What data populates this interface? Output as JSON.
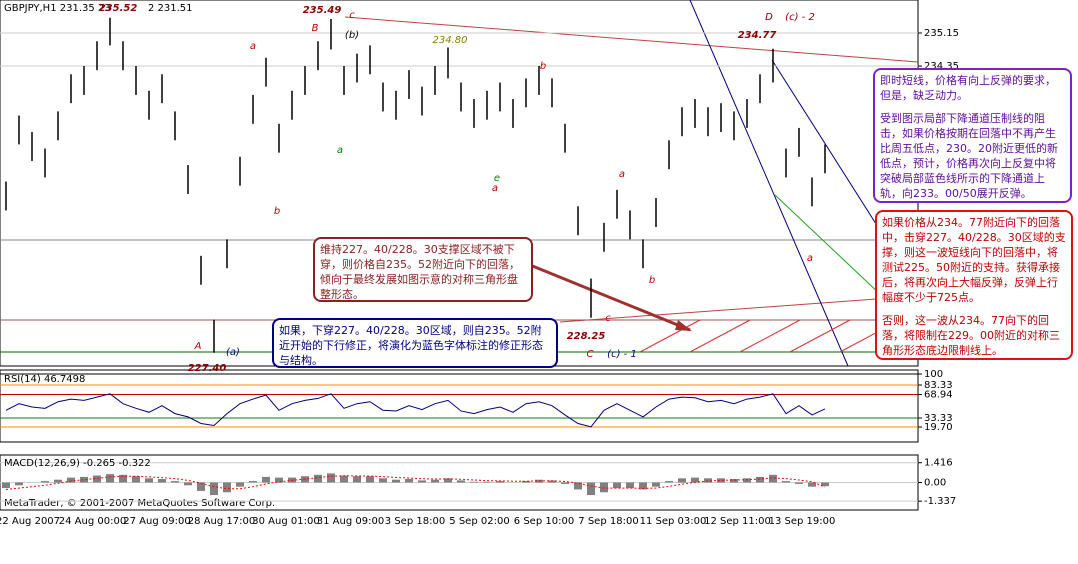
{
  "header": "GBPJPY,H1  231.35 23",
  "header_tail": "2 231.51",
  "footer": "MetaTrader, © 2001-2007 MetaQuotes Software Corp.",
  "notes": {
    "purple": [
      "即时短线，价格有向上反弹的要求，但是，缺乏动力。",
      "受到图示局部下降通道压制线的阻击，如果价格按期在回落中不再产生比周五低点，230。20附近更低的新低点，预计，价格再次向上反复中将突破局部蓝色线所示的下降通道上轨，向233。00/50展开反弹。"
    ],
    "red": [
      "如果价格从234。77附近向下的回落中，击穿227。40/228。30区域的支撑，则这一波短线向下的回落中，将测试225。50附近的支持。获得承接后，将再次向上大幅反弹，反弹上行幅度不少于725点。",
      "否则，这一波从234。77向下的回落，将限制在229。00附近的对称三角形形态底边限制线上。"
    ],
    "brown": "维持227。40/228。30支撑区域不被下穿，则价格自235。52附近向下的回落，倾向于最终发展如图示意的对称三角形盘整形态。",
    "blue": "如果，下穿227。40/228。30区域，则自235。52附近开始的下行修正，将演化为蓝色字体标注的修正形态与结构。"
  },
  "chart_data": [
    {
      "type": "hilo",
      "color": "#000000",
      "high": [
        231.55,
        233.15,
        232.75,
        232.35,
        233.25,
        234.15,
        234.35,
        234.95,
        235.52,
        234.95,
        234.35,
        233.75,
        234.15,
        233.25,
        231.95,
        229.75,
        228.2,
        230.15,
        232.15,
        233.65,
        234.55,
        232.95,
        233.75,
        234.35,
        234.95,
        235.49,
        234.35,
        234.65,
        234.85,
        233.95,
        233.75,
        234.25,
        233.85,
        234.35,
        234.8,
        233.95,
        233.55,
        233.75,
        233.95,
        233.55,
        234.05,
        234.35,
        234.05,
        232.95,
        230.95,
        229.2,
        230.55,
        231.35,
        230.85,
        230.15,
        231.15,
        232.55,
        233.35,
        233.55,
        233.35,
        233.45,
        233.25,
        233.55,
        234.15,
        234.77,
        232.35,
        232.85,
        231.65,
        232.45
      ],
      "low": [
        230.85,
        232.45,
        232.05,
        231.65,
        232.55,
        233.45,
        233.65,
        234.25,
        234.85,
        234.25,
        233.65,
        233.05,
        233.45,
        232.55,
        231.25,
        229.05,
        227.4,
        229.45,
        231.45,
        232.95,
        233.85,
        232.25,
        233.05,
        233.65,
        234.25,
        234.75,
        233.65,
        233.95,
        234.15,
        233.25,
        233.05,
        233.55,
        233.15,
        233.65,
        234.05,
        233.25,
        232.85,
        233.05,
        233.25,
        232.85,
        233.35,
        233.65,
        233.35,
        232.25,
        230.25,
        228.25,
        229.85,
        230.65,
        230.15,
        229.45,
        230.45,
        231.85,
        232.65,
        232.85,
        232.65,
        232.75,
        232.55,
        232.85,
        233.45,
        233.95,
        231.65,
        232.15,
        230.95,
        231.75
      ],
      "ylim": [
        227.08,
        235.95
      ],
      "yticks": [
        235.15,
        234.35
      ],
      "x_labels": [
        "22 Aug 2007",
        "24 Aug 00:00",
        "27 Aug 09:00",
        "28 Aug 17:00",
        "30 Aug 01:00",
        "31 Aug 09:00",
        "3 Sep 18:00",
        "5 Sep 02:00",
        "6 Sep 10:00",
        "7 Sep 18:00",
        "11 Sep 03:00",
        "12 Sep 11:00",
        "13 Sep 19:00"
      ],
      "wave_labels": [
        "235.52",
        "235.49",
        "c",
        "B",
        "(b)",
        "a",
        "234.80",
        "b",
        "a",
        "e",
        "a",
        "a",
        "b",
        "b",
        "a",
        "D",
        "(c) - 2",
        "234.77",
        "A",
        "(a)",
        "227.40",
        "228.25",
        "c",
        "C",
        "(c) - 1"
      ]
    },
    {
      "type": "line",
      "title": "RSI(14) 46.7498",
      "color": "#000080",
      "values": [
        45,
        55,
        50,
        48,
        58,
        62,
        60,
        65,
        70,
        55,
        48,
        42,
        52,
        40,
        35,
        25,
        22,
        40,
        55,
        62,
        68,
        45,
        55,
        60,
        63,
        70,
        48,
        55,
        58,
        45,
        44,
        52,
        46,
        55,
        60,
        44,
        40,
        46,
        50,
        42,
        55,
        58,
        52,
        38,
        25,
        20,
        45,
        55,
        45,
        35,
        50,
        62,
        65,
        64,
        58,
        60,
        55,
        62,
        65,
        70,
        40,
        52,
        38,
        47
      ],
      "ylim": [
        0,
        100
      ],
      "yticks": [
        100,
        83.33,
        68.94,
        33.33,
        {
          "value": 19.7,
          "label": "19.70"
        }
      ]
    },
    {
      "type": "macd",
      "title": "MACD(12,26,9) -0.265 -0.322",
      "color": "#808080",
      "signal_color": "#ff0000",
      "values": [
        -0.4,
        -0.2,
        0,
        0.1,
        0.2,
        0.35,
        0.4,
        0.5,
        0.6,
        0.55,
        0.45,
        0.3,
        0.25,
        0.1,
        -0.2,
        -0.6,
        -0.9,
        -0.7,
        -0.3,
        0.1,
        0.4,
        0.35,
        0.35,
        0.45,
        0.55,
        0.65,
        0.5,
        0.45,
        0.45,
        0.3,
        0.2,
        0.25,
        0.15,
        0.2,
        0.3,
        0.15,
        0.05,
        0.05,
        0.1,
        0,
        0.1,
        0.2,
        0.15,
        -0.1,
        -0.5,
        -0.9,
        -0.7,
        -0.4,
        -0.4,
        -0.5,
        -0.3,
        0.1,
        0.3,
        0.35,
        0.3,
        0.3,
        0.25,
        0.3,
        0.4,
        0.55,
        0.1,
        -0.1,
        -0.3,
        -0.265
      ],
      "signal": [
        -0.5,
        -0.4,
        -0.3,
        -0.2,
        -0.05,
        0.1,
        0.2,
        0.3,
        0.4,
        0.45,
        0.45,
        0.4,
        0.35,
        0.28,
        0.15,
        -0.05,
        -0.3,
        -0.45,
        -0.45,
        -0.3,
        -0.1,
        0.05,
        0.15,
        0.25,
        0.35,
        0.45,
        0.48,
        0.47,
        0.46,
        0.42,
        0.36,
        0.32,
        0.27,
        0.25,
        0.26,
        0.23,
        0.18,
        0.13,
        0.12,
        0.09,
        0.09,
        0.11,
        0.12,
        0.07,
        -0.05,
        -0.25,
        -0.4,
        -0.4,
        -0.4,
        -0.42,
        -0.4,
        -0.28,
        -0.12,
        0.02,
        0.1,
        0.15,
        0.18,
        0.2,
        0.25,
        0.33,
        0.28,
        0.18,
        0.05,
        -0.322
      ],
      "ylim": [
        -1.97,
        1.97
      ],
      "yticks": [
        1.416,
        {
          "value": 0,
          "label": "0.00"
        },
        -1.337
      ]
    }
  ]
}
